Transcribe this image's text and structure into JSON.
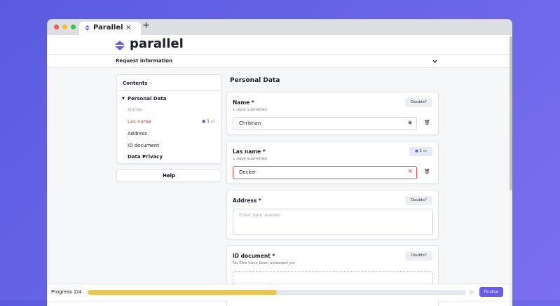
{
  "browser": {
    "tab_title": "Parallel",
    "tab_close": "×",
    "new_tab": "+"
  },
  "header": {
    "logo": "parallel",
    "section": "Request information"
  },
  "contents": {
    "title": "Contents",
    "group": "Personal Data",
    "items": [
      "Name",
      "Las name",
      "Address",
      "ID document"
    ],
    "active_count": "1",
    "next_group": "Data Privacy",
    "help": "Help"
  },
  "main": {
    "heading": "Personal Data",
    "fields": [
      {
        "label": "Name *",
        "status": "1 reply submitted",
        "value": "Christian",
        "button": "Doubts?"
      },
      {
        "label": "Las name *",
        "status": "1 reply submitted",
        "value": "Decker",
        "count": "1"
      },
      {
        "label": "Address *",
        "placeholder": "Enter your answer",
        "button": "Doubts?"
      },
      {
        "label": "ID document *",
        "status": "No files have been uploaded yet",
        "button": "Doubts?"
      }
    ]
  },
  "footer": {
    "progress": "Progress 2/4",
    "finalize": "Finalize"
  }
}
